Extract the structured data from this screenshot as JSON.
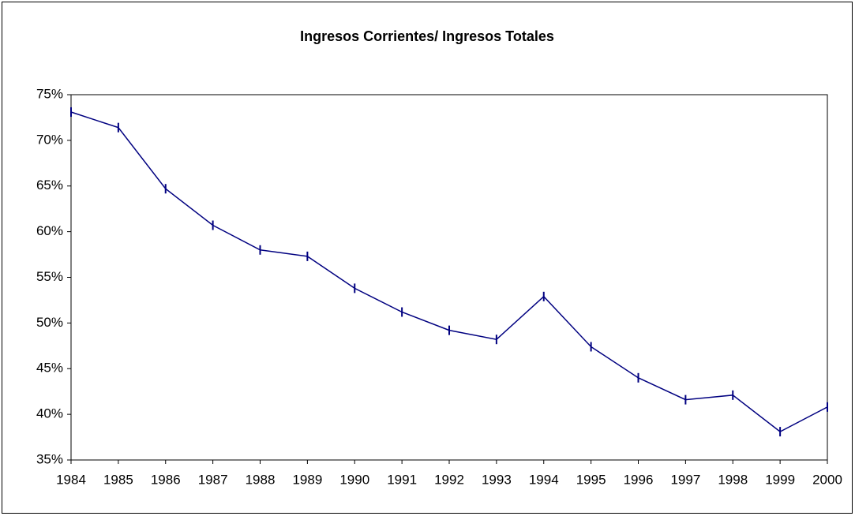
{
  "chart_data": {
    "type": "line",
    "title": "Ingresos Corrientes/ Ingresos Totales",
    "categories": [
      "1984",
      "1985",
      "1986",
      "1987",
      "1988",
      "1989",
      "1990",
      "1991",
      "1992",
      "1993",
      "1994",
      "1995",
      "1996",
      "1997",
      "1998",
      "1999",
      "2000"
    ],
    "values": [
      73.1,
      71.4,
      64.7,
      60.7,
      58.0,
      57.3,
      53.8,
      51.2,
      49.2,
      48.2,
      52.9,
      47.4,
      44.0,
      41.6,
      42.1,
      38.1,
      40.8
    ],
    "color": "#000080",
    "ylim": [
      35,
      75
    ],
    "yticks": [
      {
        "value": 35,
        "label": "35%"
      },
      {
        "value": 40,
        "label": "40%"
      },
      {
        "value": 45,
        "label": "45%"
      },
      {
        "value": 50,
        "label": "50%"
      },
      {
        "value": 55,
        "label": "55%"
      },
      {
        "value": 60,
        "label": "60%"
      },
      {
        "value": 65,
        "label": "65%"
      },
      {
        "value": 70,
        "label": "70%"
      },
      {
        "value": 75,
        "label": "75%"
      }
    ],
    "grid": false
  }
}
